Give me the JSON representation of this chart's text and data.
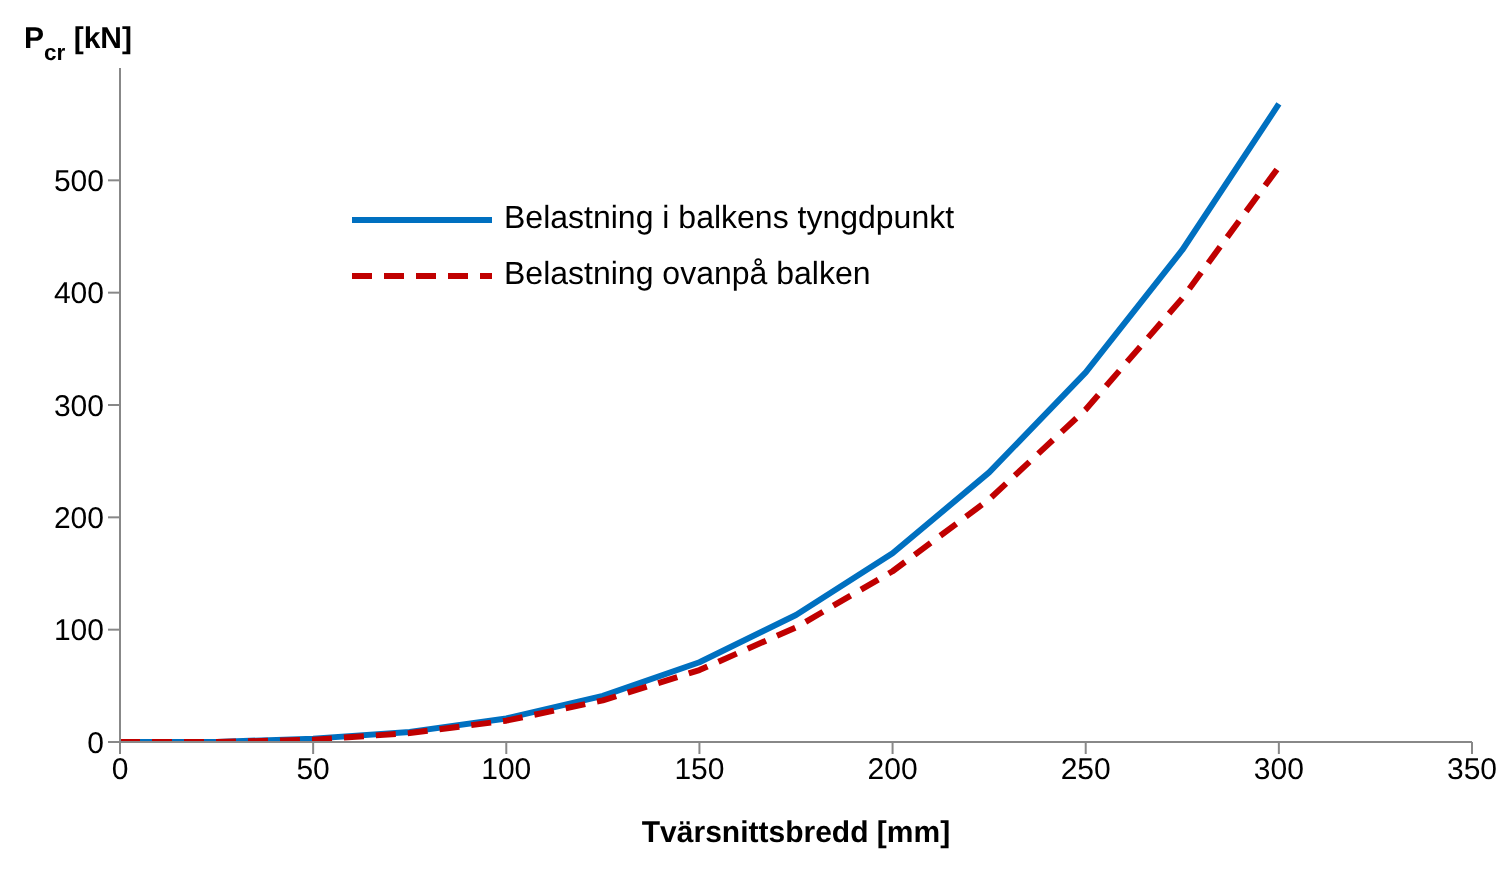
{
  "chart_data": {
    "type": "line",
    "xlabel": "Tvärsnittsbredd [mm]",
    "ylabel": "P$_{cr}$ [kN]",
    "x": [
      0,
      25,
      50,
      75,
      100,
      125,
      150,
      175,
      200,
      225,
      250,
      275,
      300
    ],
    "series": [
      {
        "name": "Belastning i balkens tyngdpunkt",
        "color": "#0070c0",
        "line_style": "solid",
        "values": [
          0,
          0,
          3,
          9,
          21,
          41,
          71,
          113,
          168,
          240,
          329,
          438,
          568
        ]
      },
      {
        "name": "Belastning ovanpå balken",
        "color": "#c00000",
        "line_style": "dashed",
        "values": [
          0,
          0,
          2,
          8,
          19,
          37,
          64,
          102,
          152,
          216,
          296,
          395,
          512
        ]
      }
    ],
    "xlim": [
      0,
      350
    ],
    "xticks": [
      0,
      50,
      100,
      150,
      200,
      250,
      300,
      350
    ],
    "ylim": [
      0,
      600
    ],
    "yticks": [
      0,
      100,
      200,
      300,
      400,
      500
    ],
    "grid": false,
    "legend": "top left",
    "marker": "none"
  }
}
